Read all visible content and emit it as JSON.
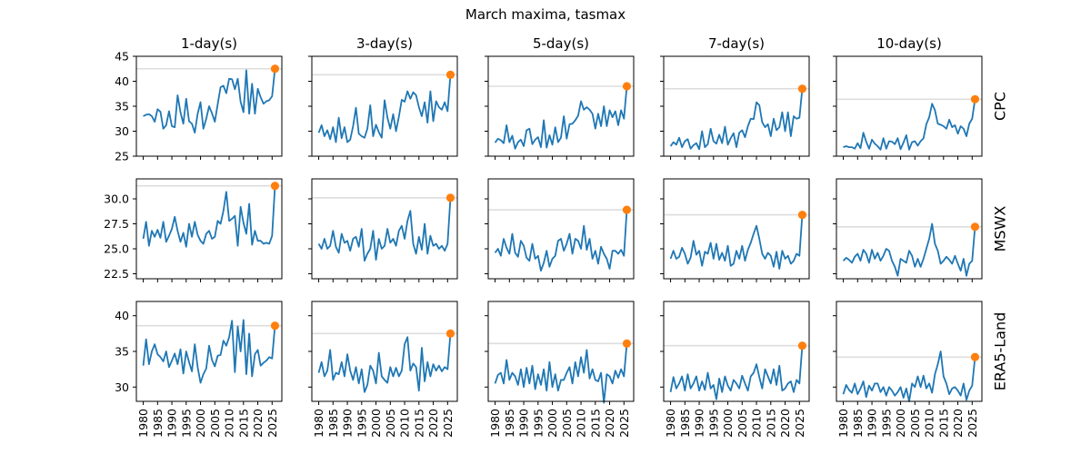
{
  "chart_data": {
    "type": "line",
    "title": "March maxima, tasmax",
    "columns": [
      "1-day(s)",
      "3-day(s)",
      "5-day(s)",
      "7-day(s)",
      "10-day(s)"
    ],
    "rows": [
      "CPC",
      "MSWX",
      "ERA5-Land"
    ],
    "x_start": 1980,
    "x_end": 2025,
    "highlight_x": 2026,
    "xlim": [
      1977.6,
      2028.4
    ],
    "x_ticks": [
      1980,
      1985,
      1990,
      1995,
      2000,
      2005,
      2010,
      2015,
      2020,
      2025
    ],
    "row_axes": [
      {
        "ylim": [
          25,
          45
        ],
        "ticks": [
          25,
          30,
          35,
          40,
          45
        ],
        "tick_labels": [
          "25",
          "30",
          "35",
          "40",
          "45"
        ]
      },
      {
        "ylim": [
          22,
          32
        ],
        "ticks": [
          22.5,
          25,
          27.5,
          30
        ],
        "tick_labels": [
          "22.5",
          "25.0",
          "27.5",
          "30.0"
        ]
      },
      {
        "ylim": [
          28,
          42
        ],
        "ticks": [
          30,
          35,
          40
        ],
        "tick_labels": [
          "30",
          "35",
          "40"
        ]
      }
    ],
    "series_color": "#1f77b4",
    "highlight_color": "#ff7f0e",
    "reference_color": "#dddddd",
    "panels": [
      [
        {
          "column": "1-day(s)",
          "reference": 42.5,
          "highlight": 42.5,
          "values": [
            33.0,
            33.3,
            33.4,
            33.0,
            31.9,
            34.4,
            33.9,
            30.5,
            31.2,
            34.0,
            31.0,
            30.8,
            37.2,
            33.8,
            31.5,
            36.5,
            32.0,
            31.5,
            29.7,
            33.5,
            35.8,
            30.5,
            32.5,
            35.0,
            33.6,
            31.9,
            35.4,
            38.8,
            39.1,
            37.6,
            40.5,
            40.4,
            38.4,
            40.5,
            35.9,
            33.8,
            42.2,
            33.5,
            39.5,
            33.5,
            38.5,
            36.8,
            35.5,
            36.0,
            36.2,
            37.0
          ]
        },
        {
          "column": "3-day(s)",
          "reference": 41.3,
          "highlight": 41.3,
          "values": [
            29.7,
            31.2,
            29.0,
            30.2,
            28.4,
            30.8,
            27.8,
            32.7,
            28.6,
            30.8,
            27.8,
            28.3,
            31.0,
            34.7,
            29.5,
            29.0,
            28.7,
            30.5,
            35.2,
            29.0,
            31.3,
            29.8,
            28.7,
            36.2,
            32.7,
            30.5,
            33.4,
            30.0,
            32.9,
            36.3,
            35.9,
            38.0,
            36.5,
            37.8,
            37.2,
            34.8,
            33.0,
            35.8,
            31.7,
            38.0,
            32.0,
            36.0,
            34.8,
            34.3,
            35.8,
            34.0
          ]
        },
        {
          "column": "5-day(s)",
          "reference": 39.0,
          "highlight": 39.0,
          "values": [
            27.7,
            28.5,
            28.2,
            27.6,
            31.2,
            27.8,
            29.1,
            26.5,
            27.8,
            28.3,
            27.0,
            30.2,
            30.5,
            27.4,
            28.3,
            28.8,
            26.8,
            32.2,
            26.7,
            29.2,
            27.3,
            30.8,
            27.8,
            28.7,
            33.0,
            28.5,
            31.4,
            31.5,
            32.2,
            33.1,
            36.0,
            34.3,
            34.8,
            34.3,
            33.5,
            30.5,
            33.5,
            31.0,
            35.0,
            31.0,
            34.2,
            32.8,
            34.0,
            31.2,
            34.2,
            32.5
          ]
        },
        {
          "column": "7-day(s)",
          "reference": 38.5,
          "highlight": 38.5,
          "values": [
            27.0,
            27.8,
            27.3,
            28.7,
            26.8,
            28.0,
            28.4,
            26.5,
            27.2,
            27.6,
            26.4,
            30.0,
            26.8,
            27.4,
            30.5,
            28.0,
            27.5,
            29.3,
            27.6,
            30.9,
            27.3,
            28.6,
            29.6,
            26.8,
            29.7,
            30.2,
            28.8,
            31.0,
            32.5,
            32.4,
            35.8,
            35.2,
            31.8,
            30.8,
            31.4,
            29.0,
            32.5,
            30.2,
            30.8,
            33.8,
            30.0,
            33.8,
            29.0,
            33.0,
            32.5,
            32.7
          ]
        },
        {
          "column": "10-day(s)",
          "reference": 36.4,
          "highlight": 36.4,
          "values": [
            26.8,
            27.0,
            26.8,
            26.8,
            26.5,
            27.6,
            26.6,
            29.7,
            27.9,
            26.5,
            28.3,
            27.5,
            27.0,
            26.3,
            28.6,
            26.5,
            28.0,
            27.9,
            27.4,
            28.6,
            26.4,
            27.7,
            29.2,
            26.3,
            27.8,
            28.0,
            27.1,
            28.0,
            28.6,
            31.4,
            32.8,
            35.5,
            34.2,
            31.5,
            31.3,
            31.0,
            30.5,
            32.3,
            30.8,
            31.2,
            29.5,
            31.0,
            30.5,
            29.0,
            31.5,
            32.5
          ]
        }
      ],
      [
        {
          "column": "1-day(s)",
          "reference": 31.3,
          "highlight": 31.3,
          "values": [
            26.0,
            27.7,
            25.3,
            26.8,
            26.2,
            26.9,
            26.1,
            27.7,
            25.7,
            26.3,
            27.0,
            28.2,
            26.8,
            25.7,
            26.6,
            25.2,
            27.5,
            26.2,
            27.7,
            26.4,
            25.8,
            25.5,
            26.5,
            26.8,
            26.0,
            26.2,
            27.8,
            27.5,
            28.8,
            30.7,
            27.8,
            28.0,
            28.3,
            25.3,
            29.2,
            27.6,
            26.5,
            29.5,
            25.4,
            26.8,
            25.8,
            25.8,
            25.5,
            25.6,
            25.5,
            26.3
          ]
        },
        {
          "column": "3-day(s)",
          "reference": 30.1,
          "highlight": 30.1,
          "values": [
            25.5,
            25.0,
            26.0,
            25.0,
            25.3,
            26.8,
            25.2,
            24.6,
            26.5,
            25.6,
            25.8,
            24.8,
            26.0,
            26.2,
            25.2,
            27.0,
            23.8,
            24.5,
            25.0,
            26.8,
            23.9,
            26.0,
            25.0,
            25.3,
            27.0,
            25.6,
            26.0,
            25.3,
            26.8,
            27.3,
            26.0,
            27.8,
            28.8,
            25.5,
            24.5,
            26.2,
            24.9,
            27.5,
            24.5,
            26.3,
            25.3,
            25.5,
            25.0,
            25.3,
            24.8,
            25.5
          ]
        },
        {
          "column": "5-day(s)",
          "reference": 28.9,
          "highlight": 28.9,
          "values": [
            24.6,
            25.0,
            24.3,
            26.0,
            25.1,
            24.5,
            26.5,
            24.6,
            24.2,
            25.8,
            25.3,
            24.1,
            23.8,
            25.5,
            24.0,
            24.3,
            22.8,
            23.6,
            24.8,
            23.2,
            24.0,
            24.3,
            25.8,
            26.0,
            24.8,
            25.5,
            26.5,
            24.5,
            26.0,
            25.8,
            25.0,
            27.3,
            24.9,
            26.0,
            24.0,
            24.8,
            23.5,
            25.2,
            24.5,
            24.0,
            23.0,
            24.8,
            24.8,
            24.5,
            24.9,
            24.3
          ]
        },
        {
          "column": "7-day(s)",
          "reference": 28.4,
          "highlight": 28.4,
          "values": [
            24.0,
            24.8,
            24.0,
            24.2,
            25.1,
            24.5,
            23.5,
            24.1,
            25.8,
            24.4,
            24.8,
            23.3,
            24.7,
            24.5,
            25.6,
            24.0,
            25.5,
            23.9,
            24.6,
            23.8,
            25.3,
            23.3,
            23.5,
            24.8,
            24.0,
            25.3,
            23.8,
            24.9,
            25.6,
            26.5,
            27.3,
            26.0,
            24.5,
            24.0,
            24.6,
            24.3,
            23.2,
            24.7,
            23.0,
            24.8,
            24.0,
            24.3,
            23.5,
            23.8,
            24.5,
            24.3
          ]
        },
        {
          "column": "10-day(s)",
          "reference": 27.2,
          "highlight": 27.2,
          "values": [
            23.8,
            24.1,
            23.9,
            23.6,
            24.2,
            24.5,
            23.8,
            24.9,
            24.5,
            23.6,
            24.9,
            24.0,
            24.6,
            23.8,
            24.3,
            25.0,
            24.8,
            23.8,
            23.2,
            22.3,
            24.0,
            23.8,
            23.6,
            24.8,
            24.3,
            23.2,
            24.0,
            23.2,
            24.0,
            25.0,
            26.0,
            27.5,
            25.5,
            24.8,
            23.5,
            23.8,
            24.2,
            23.9,
            23.5,
            24.3,
            23.5,
            22.8,
            24.0,
            22.3,
            23.5,
            23.8
          ]
        }
      ],
      [
        {
          "column": "1-day(s)",
          "reference": 38.6,
          "highlight": 38.6,
          "values": [
            33.0,
            36.7,
            33.2,
            35.0,
            36.0,
            34.6,
            34.2,
            33.6,
            35.0,
            32.8,
            33.7,
            34.7,
            33.2,
            35.3,
            31.9,
            35.0,
            33.5,
            32.2,
            36.0,
            32.8,
            30.6,
            31.8,
            32.6,
            35.8,
            33.8,
            32.9,
            34.4,
            34.5,
            36.5,
            35.8,
            37.0,
            39.3,
            32.1,
            38.5,
            35.0,
            39.4,
            31.8,
            37.5,
            31.5,
            34.6,
            35.2,
            33.0,
            33.4,
            33.7,
            34.2,
            34.0
          ]
        },
        {
          "column": "3-day(s)",
          "reference": 37.5,
          "highlight": 37.5,
          "values": [
            32.0,
            33.5,
            31.5,
            32.3,
            35.2,
            31.0,
            32.0,
            31.8,
            33.5,
            31.5,
            34.6,
            32.3,
            31.0,
            32.8,
            30.5,
            32.5,
            29.3,
            30.3,
            33.0,
            32.3,
            30.5,
            34.8,
            31.5,
            31.0,
            30.6,
            32.8,
            31.5,
            32.7,
            31.5,
            32.3,
            36.0,
            37.0,
            32.3,
            33.3,
            32.8,
            29.5,
            35.5,
            30.8,
            33.5,
            31.5,
            33.2,
            32.3,
            33.0,
            32.2,
            32.8,
            32.5
          ]
        },
        {
          "column": "5-day(s)",
          "reference": 36.1,
          "highlight": 36.1,
          "values": [
            30.5,
            31.7,
            32.0,
            30.5,
            33.8,
            31.0,
            32.0,
            31.5,
            30.3,
            32.5,
            30.0,
            32.7,
            30.5,
            33.0,
            29.7,
            31.8,
            30.3,
            32.5,
            29.5,
            33.5,
            30.0,
            31.8,
            29.5,
            31.0,
            31.0,
            32.0,
            32.8,
            30.5,
            33.5,
            31.5,
            34.2,
            32.0,
            35.2,
            31.2,
            32.5,
            31.0,
            30.8,
            32.0,
            27.8,
            31.8,
            31.5,
            30.5,
            32.3,
            31.3,
            32.5,
            31.5
          ]
        },
        {
          "column": "7-day(s)",
          "reference": 35.8,
          "highlight": 35.8,
          "values": [
            29.3,
            31.4,
            29.8,
            30.5,
            31.5,
            29.5,
            31.8,
            29.8,
            30.5,
            31.5,
            29.5,
            30.8,
            29.6,
            32.0,
            29.8,
            30.3,
            28.3,
            31.2,
            29.3,
            31.5,
            30.2,
            29.5,
            31.0,
            30.5,
            29.8,
            31.6,
            30.5,
            29.5,
            31.5,
            32.0,
            33.2,
            31.4,
            29.8,
            32.5,
            31.5,
            30.5,
            32.5,
            30.3,
            33.0,
            29.5,
            29.8,
            30.5,
            30.8,
            29.3,
            31.0,
            30.5
          ]
        },
        {
          "column": "10-day(s)",
          "reference": 34.2,
          "highlight": 34.2,
          "values": [
            29.0,
            30.3,
            29.6,
            29.2,
            30.5,
            29.0,
            29.8,
            30.8,
            28.6,
            30.2,
            29.5,
            30.5,
            30.5,
            29.3,
            30.0,
            28.8,
            30.0,
            29.5,
            28.8,
            29.3,
            30.0,
            28.5,
            29.8,
            28.0,
            30.5,
            30.0,
            31.5,
            30.0,
            31.6,
            29.8,
            30.5,
            29.2,
            31.8,
            33.2,
            35.0,
            31.5,
            30.5,
            29.0,
            29.8,
            30.0,
            29.5,
            28.8,
            30.5,
            28.2,
            29.5,
            30.2
          ]
        }
      ]
    ]
  }
}
